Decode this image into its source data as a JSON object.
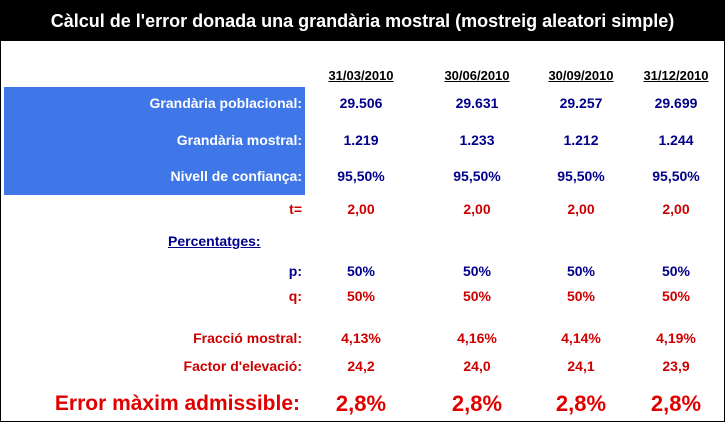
{
  "title": "Càlcul de l'error donada una grandària mostral (mostreig aleatori simple)",
  "dates": [
    "31/03/2010",
    "30/06/2010",
    "30/09/2010",
    "31/12/2010"
  ],
  "labels": {
    "grandaria_poblacional": "Grandària poblacional:",
    "grandaria_mostral": "Grandària mostral:",
    "nivell_confianca": "Nivell de confiança:",
    "t": "t=",
    "percentatges": "Percentatges:",
    "p": "p:",
    "q": "q:",
    "fraccio_mostral": "Fracció mostral:",
    "factor_elevacio": "Factor d'elevació:",
    "error_maxim": "Error màxim admissible:"
  },
  "rows": {
    "grandaria_poblacional": [
      "29.506",
      "29.631",
      "29.257",
      "29.699"
    ],
    "grandaria_mostral": [
      "1.219",
      "1.233",
      "1.212",
      "1.244"
    ],
    "nivell_confianca": [
      "95,50%",
      "95,50%",
      "95,50%",
      "95,50%"
    ],
    "t": [
      "2,00",
      "2,00",
      "2,00",
      "2,00"
    ],
    "p": [
      "50%",
      "50%",
      "50%",
      "50%"
    ],
    "q": [
      "50%",
      "50%",
      "50%",
      "50%"
    ],
    "fraccio_mostral": [
      "4,13%",
      "4,16%",
      "4,14%",
      "4,19%"
    ],
    "factor_elevacio": [
      "24,2",
      "24,0",
      "24,1",
      "23,9"
    ],
    "error_maxim": [
      "2,8%",
      "2,8%",
      "2,8%",
      "2,8%"
    ]
  },
  "colors": {
    "title_bg": "#000000",
    "label_panel": "#3f76e8",
    "blue_text": "#00008b",
    "red_text": "#cc0000"
  }
}
